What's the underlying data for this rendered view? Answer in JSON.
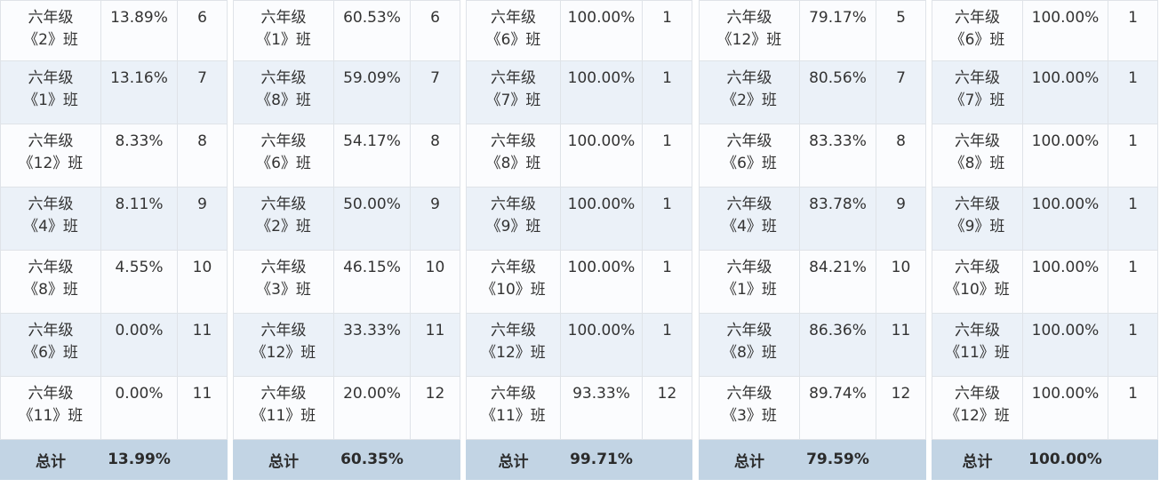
{
  "tables": [
    {
      "rows": [
        {
          "grade": "六年级",
          "cls": "《2》班",
          "pct": "13.89%",
          "rank": "6"
        },
        {
          "grade": "六年级",
          "cls": "《1》班",
          "pct": "13.16%",
          "rank": "7"
        },
        {
          "grade": "六年级",
          "cls": "《12》班",
          "pct": "8.33%",
          "rank": "8"
        },
        {
          "grade": "六年级",
          "cls": "《4》班",
          "pct": "8.11%",
          "rank": "9"
        },
        {
          "grade": "六年级",
          "cls": "《8》班",
          "pct": "4.55%",
          "rank": "10"
        },
        {
          "grade": "六年级",
          "cls": "《6》班",
          "pct": "0.00%",
          "rank": "11"
        },
        {
          "grade": "六年级",
          "cls": "《11》班",
          "pct": "0.00%",
          "rank": "11"
        }
      ],
      "total": {
        "label": "总计",
        "pct": "13.99%",
        "rank": ""
      }
    },
    {
      "rows": [
        {
          "grade": "六年级",
          "cls": "《1》班",
          "pct": "60.53%",
          "rank": "6"
        },
        {
          "grade": "六年级",
          "cls": "《8》班",
          "pct": "59.09%",
          "rank": "7"
        },
        {
          "grade": "六年级",
          "cls": "《6》班",
          "pct": "54.17%",
          "rank": "8"
        },
        {
          "grade": "六年级",
          "cls": "《2》班",
          "pct": "50.00%",
          "rank": "9"
        },
        {
          "grade": "六年级",
          "cls": "《3》班",
          "pct": "46.15%",
          "rank": "10"
        },
        {
          "grade": "六年级",
          "cls": "《12》班",
          "pct": "33.33%",
          "rank": "11"
        },
        {
          "grade": "六年级",
          "cls": "《11》班",
          "pct": "20.00%",
          "rank": "12"
        }
      ],
      "total": {
        "label": "总计",
        "pct": "60.35%",
        "rank": ""
      }
    },
    {
      "rows": [
        {
          "grade": "六年级",
          "cls": "《6》班",
          "pct": "100.00%",
          "rank": "1"
        },
        {
          "grade": "六年级",
          "cls": "《7》班",
          "pct": "100.00%",
          "rank": "1"
        },
        {
          "grade": "六年级",
          "cls": "《8》班",
          "pct": "100.00%",
          "rank": "1"
        },
        {
          "grade": "六年级",
          "cls": "《9》班",
          "pct": "100.00%",
          "rank": "1"
        },
        {
          "grade": "六年级",
          "cls": "《10》班",
          "pct": "100.00%",
          "rank": "1"
        },
        {
          "grade": "六年级",
          "cls": "《12》班",
          "pct": "100.00%",
          "rank": "1"
        },
        {
          "grade": "六年级",
          "cls": "《11》班",
          "pct": "93.33%",
          "rank": "12"
        }
      ],
      "total": {
        "label": "总计",
        "pct": "99.71%",
        "rank": ""
      }
    },
    {
      "rows": [
        {
          "grade": "六年级",
          "cls": "《12》班",
          "pct": "79.17%",
          "rank": "5"
        },
        {
          "grade": "六年级",
          "cls": "《2》班",
          "pct": "80.56%",
          "rank": "7"
        },
        {
          "grade": "六年级",
          "cls": "《6》班",
          "pct": "83.33%",
          "rank": "8"
        },
        {
          "grade": "六年级",
          "cls": "《4》班",
          "pct": "83.78%",
          "rank": "9"
        },
        {
          "grade": "六年级",
          "cls": "《1》班",
          "pct": "84.21%",
          "rank": "10"
        },
        {
          "grade": "六年级",
          "cls": "《8》班",
          "pct": "86.36%",
          "rank": "11"
        },
        {
          "grade": "六年级",
          "cls": "《3》班",
          "pct": "89.74%",
          "rank": "12"
        }
      ],
      "total": {
        "label": "总计",
        "pct": "79.59%",
        "rank": ""
      }
    },
    {
      "rows": [
        {
          "grade": "六年级",
          "cls": "《6》班",
          "pct": "100.00%",
          "rank": "1"
        },
        {
          "grade": "六年级",
          "cls": "《7》班",
          "pct": "100.00%",
          "rank": "1"
        },
        {
          "grade": "六年级",
          "cls": "《8》班",
          "pct": "100.00%",
          "rank": "1"
        },
        {
          "grade": "六年级",
          "cls": "《9》班",
          "pct": "100.00%",
          "rank": "1"
        },
        {
          "grade": "六年级",
          "cls": "《10》班",
          "pct": "100.00%",
          "rank": "1"
        },
        {
          "grade": "六年级",
          "cls": "《11》班",
          "pct": "100.00%",
          "rank": "1"
        },
        {
          "grade": "六年级",
          "cls": "《12》班",
          "pct": "100.00%",
          "rank": "1"
        }
      ],
      "total": {
        "label": "总计",
        "pct": "100.00%",
        "rank": ""
      }
    }
  ]
}
